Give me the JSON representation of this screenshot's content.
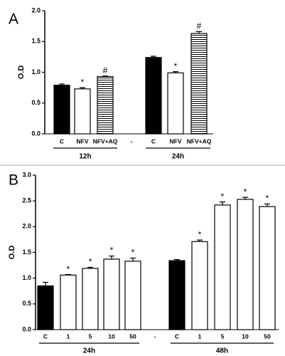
{
  "chart_data": [
    {
      "type": "bar",
      "panel_label": "A",
      "ylabel": "O.D",
      "categories": [
        "C",
        "NFV",
        "NFV+AQ",
        "-",
        "C",
        "NFV",
        "NFV+AQ"
      ],
      "values": [
        0.79,
        0.73,
        0.93,
        null,
        1.24,
        0.99,
        1.63
      ],
      "errors": [
        0.02,
        0.02,
        0.01,
        null,
        0.02,
        0.02,
        0.03
      ],
      "bar_styles": [
        "black",
        "white",
        "striped",
        null,
        "black",
        "white",
        "striped"
      ],
      "annotations": [
        null,
        "*",
        "#",
        null,
        null,
        "*",
        "#"
      ],
      "groups": [
        "12h",
        "24h"
      ],
      "ylim": [
        0,
        2.0
      ],
      "yticks": [
        {
          "value": 0,
          "label": "0.0"
        },
        {
          "value": 0.5,
          "label": "0.5"
        },
        {
          "value": 1.0,
          "label": "1.0"
        },
        {
          "value": 1.5,
          "label": "1.5"
        },
        {
          "value": 2.0,
          "label": "2.0"
        }
      ]
    },
    {
      "type": "bar",
      "panel_label": "B",
      "ylabel": "O.D",
      "categories": [
        "C",
        "1",
        "5",
        "10",
        "50",
        "-",
        "C",
        "1",
        "5",
        "10",
        "50"
      ],
      "values": [
        0.85,
        1.06,
        1.19,
        1.37,
        1.33,
        null,
        1.34,
        1.71,
        2.42,
        2.53,
        2.39
      ],
      "errors": [
        0.07,
        0.01,
        0.02,
        0.06,
        0.06,
        null,
        0.02,
        0.03,
        0.06,
        0.04,
        0.05
      ],
      "bar_styles": [
        "black",
        "white",
        "white",
        "white",
        "white",
        null,
        "black",
        "white",
        "white",
        "white",
        "white"
      ],
      "annotations": [
        null,
        "*",
        "*",
        "*",
        "*",
        null,
        null,
        "*",
        "*",
        "*",
        "*"
      ],
      "groups": [
        "24h",
        "48h"
      ],
      "ylim": [
        0,
        3.0
      ],
      "yticks": [
        {
          "value": 0,
          "label": "0.0"
        },
        {
          "value": 0.5,
          "label": "0.5"
        },
        {
          "value": 1.0,
          "label": "1.0"
        },
        {
          "value": 1.5,
          "label": "1.5"
        },
        {
          "value": 2.0,
          "label": "2.0"
        },
        {
          "value": 2.5,
          "label": "2.5"
        },
        {
          "value": 3.0,
          "label": "3.0"
        }
      ]
    }
  ]
}
